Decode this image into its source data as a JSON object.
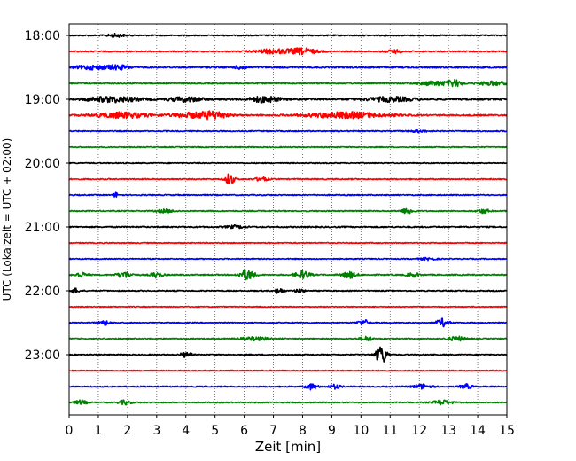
{
  "chart_data": {
    "type": "line",
    "subtype": "helicorder-seismogram",
    "xlabel": "Zeit  [min]",
    "ylabel": "UTC (Lokalzeit = UTC + 02:00)",
    "xlim": [
      0,
      15
    ],
    "x_ticks": [
      "0",
      "1",
      "2",
      "3",
      "4",
      "5",
      "6",
      "7",
      "8",
      "9",
      "10",
      "11",
      "12",
      "13",
      "14",
      "15"
    ],
    "vertical_grid": "dotted at every minute",
    "y_tick_labels": [
      "18:00",
      "19:00",
      "20:00",
      "21:00",
      "22:00",
      "23:00"
    ],
    "trace_interval_min": 15,
    "color_cycle": [
      "#000000",
      "#ff0000",
      "#0000ff",
      "#008000"
    ],
    "traces": [
      {
        "start": "18:00",
        "noise": 0.22,
        "events": [
          [
            1.6,
            0.55,
            0.3
          ]
        ]
      },
      {
        "start": "18:15",
        "noise": 0.22,
        "events": [
          [
            7.0,
            0.8,
            0.6
          ],
          [
            8.0,
            1.1,
            0.5
          ],
          [
            11.2,
            0.6,
            0.3
          ]
        ]
      },
      {
        "start": "18:30",
        "noise": 0.28,
        "events": [
          [
            0.8,
            0.7,
            0.6
          ],
          [
            1.7,
            0.7,
            0.4
          ],
          [
            5.9,
            0.7,
            0.2
          ]
        ]
      },
      {
        "start": "18:45",
        "noise": 0.22,
        "events": [
          [
            12.5,
            0.8,
            0.5
          ],
          [
            13.2,
            1.2,
            0.25
          ],
          [
            14.5,
            0.7,
            0.5
          ]
        ]
      },
      {
        "start": "19:00",
        "noise": 0.32,
        "events": [
          [
            1.5,
            1.0,
            0.9
          ],
          [
            4.0,
            0.8,
            0.6
          ],
          [
            6.7,
            1.1,
            0.5
          ],
          [
            11.0,
            0.8,
            0.8
          ]
        ]
      },
      {
        "start": "19:15",
        "noise": 0.28,
        "events": [
          [
            1.8,
            1.0,
            0.9
          ],
          [
            4.3,
            0.9,
            0.8
          ],
          [
            5.0,
            1.1,
            0.4
          ],
          [
            9.5,
            1.1,
            1.3
          ]
        ]
      },
      {
        "start": "19:30",
        "noise": 0.2,
        "events": [
          [
            12.0,
            0.4,
            0.3
          ]
        ]
      },
      {
        "start": "19:45",
        "noise": 0.18,
        "events": []
      },
      {
        "start": "20:00",
        "noise": 0.18,
        "events": []
      },
      {
        "start": "20:15",
        "noise": 0.2,
        "events": [
          [
            5.5,
            2.2,
            0.15
          ],
          [
            6.6,
            0.8,
            0.2
          ]
        ]
      },
      {
        "start": "20:30",
        "noise": 0.2,
        "events": [
          [
            1.6,
            0.9,
            0.08
          ]
        ]
      },
      {
        "start": "20:45",
        "noise": 0.2,
        "events": [
          [
            3.3,
            0.6,
            0.3
          ],
          [
            11.6,
            1.0,
            0.2
          ],
          [
            14.2,
            0.8,
            0.2
          ]
        ]
      },
      {
        "start": "21:00",
        "noise": 0.24,
        "events": [
          [
            5.7,
            0.5,
            0.3
          ]
        ]
      },
      {
        "start": "21:15",
        "noise": 0.18,
        "events": []
      },
      {
        "start": "21:30",
        "noise": 0.18,
        "events": [
          [
            12.3,
            0.4,
            0.3
          ]
        ]
      },
      {
        "start": "21:45",
        "noise": 0.22,
        "events": [
          [
            0.4,
            0.9,
            0.2
          ],
          [
            1.9,
            1.1,
            0.25
          ],
          [
            3.0,
            1.0,
            0.2
          ],
          [
            6.1,
            2.0,
            0.25
          ],
          [
            8.0,
            1.5,
            0.25
          ],
          [
            9.6,
            1.2,
            0.25
          ],
          [
            11.8,
            0.8,
            0.2
          ]
        ]
      },
      {
        "start": "22:00",
        "noise": 0.2,
        "events": [
          [
            0.2,
            0.8,
            0.15
          ],
          [
            7.2,
            1.0,
            0.15
          ],
          [
            7.9,
            0.7,
            0.15
          ]
        ]
      },
      {
        "start": "22:15",
        "noise": 0.16,
        "events": []
      },
      {
        "start": "22:30",
        "noise": 0.18,
        "events": [
          [
            1.2,
            0.9,
            0.2
          ],
          [
            10.1,
            1.1,
            0.2
          ],
          [
            12.8,
            1.5,
            0.2
          ]
        ]
      },
      {
        "start": "22:45",
        "noise": 0.2,
        "events": [
          [
            6.4,
            0.6,
            0.5
          ],
          [
            10.2,
            0.9,
            0.2
          ],
          [
            13.3,
            0.8,
            0.3
          ]
        ]
      },
      {
        "start": "23:00",
        "noise": 0.2,
        "events": [
          [
            4.0,
            0.9,
            0.2
          ],
          [
            10.7,
            3.5,
            0.18
          ]
        ]
      },
      {
        "start": "23:15",
        "noise": 0.16,
        "events": []
      },
      {
        "start": "23:30",
        "noise": 0.2,
        "events": [
          [
            8.3,
            1.1,
            0.2
          ],
          [
            9.1,
            0.8,
            0.2
          ],
          [
            12.1,
            0.9,
            0.3
          ],
          [
            13.6,
            0.9,
            0.2
          ]
        ]
      },
      {
        "start": "23:45",
        "noise": 0.2,
        "events": [
          [
            0.4,
            0.8,
            0.2
          ],
          [
            1.9,
            0.8,
            0.2
          ],
          [
            12.8,
            0.9,
            0.3
          ]
        ]
      }
    ]
  }
}
